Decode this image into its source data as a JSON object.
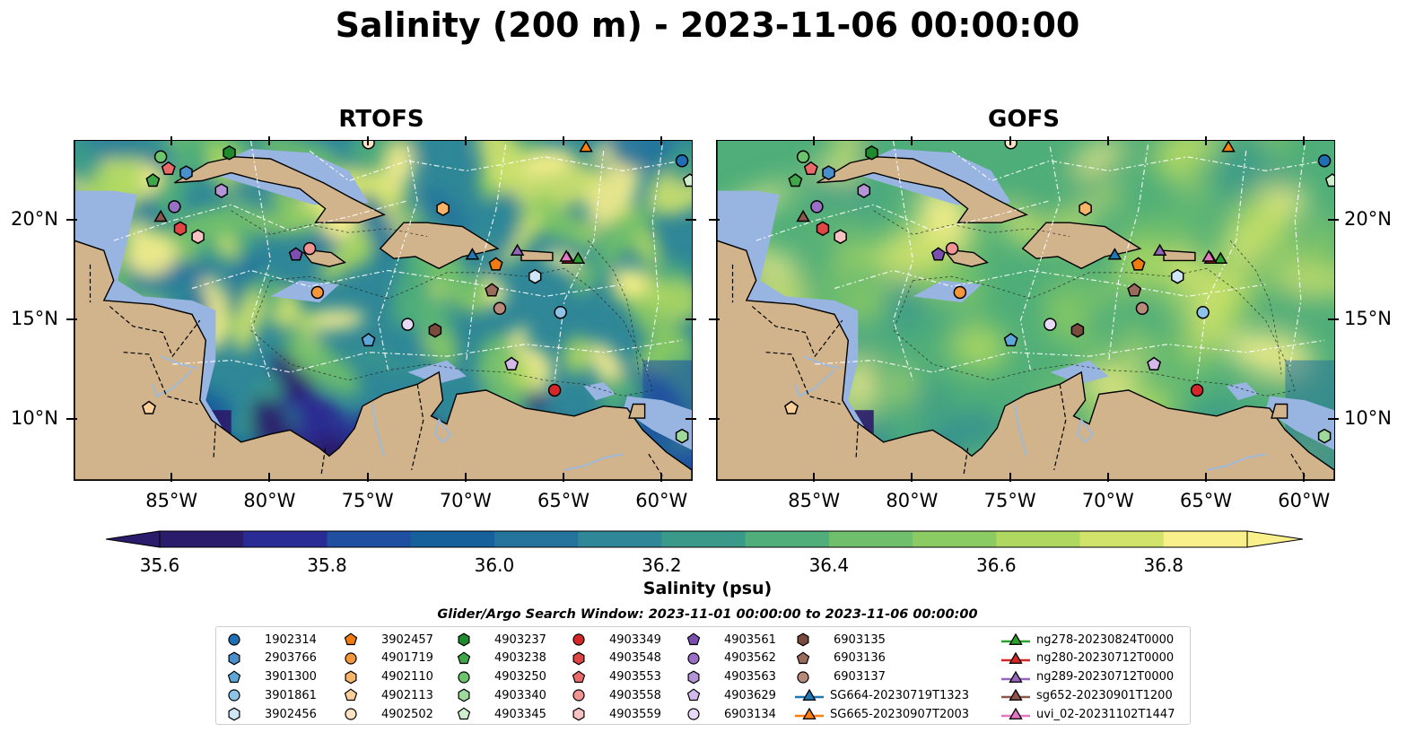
{
  "figure": {
    "suptitle": "Salinity (200 m) - 2023-11-06 00:00:00"
  },
  "panels": [
    {
      "title": "RTOFS",
      "model": "RTOFS"
    },
    {
      "title": "GOFS",
      "model": "GOFS"
    }
  ],
  "axes": {
    "lon_ticks": [
      "85°W",
      "80°W",
      "75°W",
      "70°W",
      "65°W",
      "60°W"
    ],
    "lat_ticks": [
      "20°N",
      "15°N",
      "10°N"
    ],
    "lon_range": [
      -90,
      -58.5
    ],
    "lat_range": [
      7,
      24
    ]
  },
  "colorbar": {
    "label": "Salinity (psu)",
    "ticks": [
      "35.6",
      "35.8",
      "36.0",
      "36.2",
      "36.4",
      "36.6",
      "36.8"
    ],
    "vmin": 35.6,
    "vmax": 36.9,
    "colors": [
      "#2b1b6b",
      "#2a2c95",
      "#1f4fa0",
      "#16609c",
      "#24739c",
      "#2f8797",
      "#3a9a8a",
      "#4fae79",
      "#6fbf6c",
      "#8ccb63",
      "#aed85f",
      "#d2e36c",
      "#f9f08c"
    ]
  },
  "colors": {
    "land": "#d2b48c",
    "shelf": "#98b4e0",
    "map_background": "#2a7d8f"
  },
  "search_window": "Glider/Argo Search Window: 2023-11-01 00:00:00 to 2023-11-06 00:00:00",
  "legend": {
    "columns": [
      [
        {
          "label": "1902314",
          "marker": "circle",
          "color": "#1f6fb5"
        },
        {
          "label": "2903766",
          "marker": "hexagon",
          "color": "#4a8fc9"
        },
        {
          "label": "3901300",
          "marker": "pentagon",
          "color": "#5ea6d8"
        },
        {
          "label": "3901861",
          "marker": "circle",
          "color": "#8ec3e8"
        },
        {
          "label": "3902456",
          "marker": "hexagon",
          "color": "#cfe6f7"
        }
      ],
      [
        {
          "label": "3902457",
          "marker": "pentagon",
          "color": "#f07c10"
        },
        {
          "label": "4901719",
          "marker": "circle",
          "color": "#f5963a"
        },
        {
          "label": "4902110",
          "marker": "hexagon",
          "color": "#f8b56a"
        },
        {
          "label": "4902113",
          "marker": "pentagon",
          "color": "#fbcf9a"
        },
        {
          "label": "4902502",
          "marker": "circle",
          "color": "#fde3c4"
        }
      ],
      [
        {
          "label": "4903237",
          "marker": "hexagon",
          "color": "#1f8a2e"
        },
        {
          "label": "4903238",
          "marker": "pentagon",
          "color": "#3fa64a"
        },
        {
          "label": "4903250",
          "marker": "circle",
          "color": "#6cc46d"
        },
        {
          "label": "4903340",
          "marker": "hexagon",
          "color": "#9ed99b"
        },
        {
          "label": "4903345",
          "marker": "pentagon",
          "color": "#cfeecb"
        }
      ],
      [
        {
          "label": "4903349",
          "marker": "circle",
          "color": "#d62728"
        },
        {
          "label": "4903548",
          "marker": "hexagon",
          "color": "#e04545"
        },
        {
          "label": "4903553",
          "marker": "pentagon",
          "color": "#ea6a6a"
        },
        {
          "label": "4903558",
          "marker": "circle",
          "color": "#f29494"
        },
        {
          "label": "4903559",
          "marker": "hexagon",
          "color": "#f8c2c2"
        }
      ],
      [
        {
          "label": "4903561",
          "marker": "pentagon",
          "color": "#7b4fb0"
        },
        {
          "label": "4903562",
          "marker": "circle",
          "color": "#9a6fc6"
        },
        {
          "label": "4903563",
          "marker": "hexagon",
          "color": "#b493d6"
        },
        {
          "label": "4903629",
          "marker": "pentagon",
          "color": "#d2b9ea"
        },
        {
          "label": "6903134",
          "marker": "circle",
          "color": "#e8d9f6"
        }
      ],
      [
        {
          "label": "6903135",
          "marker": "hexagon",
          "color": "#7a4a3c"
        },
        {
          "label": "6903136",
          "marker": "pentagon",
          "color": "#9a6a5a"
        },
        {
          "label": "6903137",
          "marker": "circle",
          "color": "#b88a7a"
        },
        {
          "label": "SG664-20230719T1323",
          "marker": "triangle-line",
          "color": "#1f77b4"
        },
        {
          "label": "SG665-20230907T2003",
          "marker": "triangle-line",
          "color": "#ff7f0e"
        }
      ],
      [
        {
          "label": "ng278-20230824T0000",
          "marker": "triangle-line",
          "color": "#2ca02c"
        },
        {
          "label": "ng280-20230712T0000",
          "marker": "triangle-line",
          "color": "#d62728"
        },
        {
          "label": "ng289-20230712T0000",
          "marker": "triangle-line",
          "color": "#9467bd"
        },
        {
          "label": "sg652-20230901T1200",
          "marker": "triangle-line",
          "color": "#8c564b"
        },
        {
          "label": "uvi_02-20231102T1447",
          "marker": "triangle-line",
          "color": "#e377c2"
        }
      ]
    ]
  },
  "platforms": [
    {
      "id": "1902314",
      "lon": -59.0,
      "lat": 23.0
    },
    {
      "id": "2903766",
      "lon": -84.3,
      "lat": 22.4
    },
    {
      "id": "3901300",
      "lon": -75.0,
      "lat": 14.0
    },
    {
      "id": "3901861",
      "lon": -65.2,
      "lat": 15.4
    },
    {
      "id": "3902456",
      "lon": -66.5,
      "lat": 17.2
    },
    {
      "id": "3902457",
      "lon": -68.5,
      "lat": 17.8
    },
    {
      "id": "4901719",
      "lon": -77.6,
      "lat": 16.4
    },
    {
      "id": "4902110",
      "lon": -71.2,
      "lat": 20.6
    },
    {
      "id": "4902113",
      "lon": -86.2,
      "lat": 10.6
    },
    {
      "id": "4902502",
      "lon": -75.0,
      "lat": 23.9
    },
    {
      "id": "4903237",
      "lon": -82.1,
      "lat": 23.4
    },
    {
      "id": "4903238",
      "lon": -86.0,
      "lat": 22.0
    },
    {
      "id": "4903250",
      "lon": -85.6,
      "lat": 23.2
    },
    {
      "id": "4903340",
      "lon": -59.0,
      "lat": 9.2
    },
    {
      "id": "4903345",
      "lon": -58.6,
      "lat": 22.0
    },
    {
      "id": "4903349",
      "lon": -65.5,
      "lat": 11.5
    },
    {
      "id": "4903548",
      "lon": -84.6,
      "lat": 19.6
    },
    {
      "id": "4903553",
      "lon": -85.2,
      "lat": 22.6
    },
    {
      "id": "4903558",
      "lon": -78.0,
      "lat": 18.6
    },
    {
      "id": "4903559",
      "lon": -83.7,
      "lat": 19.2
    },
    {
      "id": "4903561",
      "lon": -78.7,
      "lat": 18.3
    },
    {
      "id": "4903562",
      "lon": -84.9,
      "lat": 20.7
    },
    {
      "id": "4903563",
      "lon": -82.5,
      "lat": 21.5
    },
    {
      "id": "4903629",
      "lon": -67.7,
      "lat": 12.8
    },
    {
      "id": "6903134",
      "lon": -73.0,
      "lat": 14.8
    },
    {
      "id": "6903135",
      "lon": -71.6,
      "lat": 14.5
    },
    {
      "id": "6903136",
      "lon": -68.7,
      "lat": 16.5
    },
    {
      "id": "6903137",
      "lon": -68.3,
      "lat": 15.6
    },
    {
      "id": "SG664-20230719T1323",
      "lon": -69.7,
      "lat": 18.3
    },
    {
      "id": "SG665-20230907T2003",
      "lon": -63.9,
      "lat": 23.7
    },
    {
      "id": "ng278-20230824T0000",
      "lon": -64.3,
      "lat": 18.1
    },
    {
      "id": "ng280-20230712T0000",
      "lon": -64.8,
      "lat": 18.1
    },
    {
      "id": "ng289-20230712T0000",
      "lon": -67.4,
      "lat": 18.5
    },
    {
      "id": "sg652-20230901T1200",
      "lon": -85.6,
      "lat": 20.2
    },
    {
      "id": "uvi_02-20231102T1447",
      "lon": -64.9,
      "lat": 18.2
    }
  ]
}
